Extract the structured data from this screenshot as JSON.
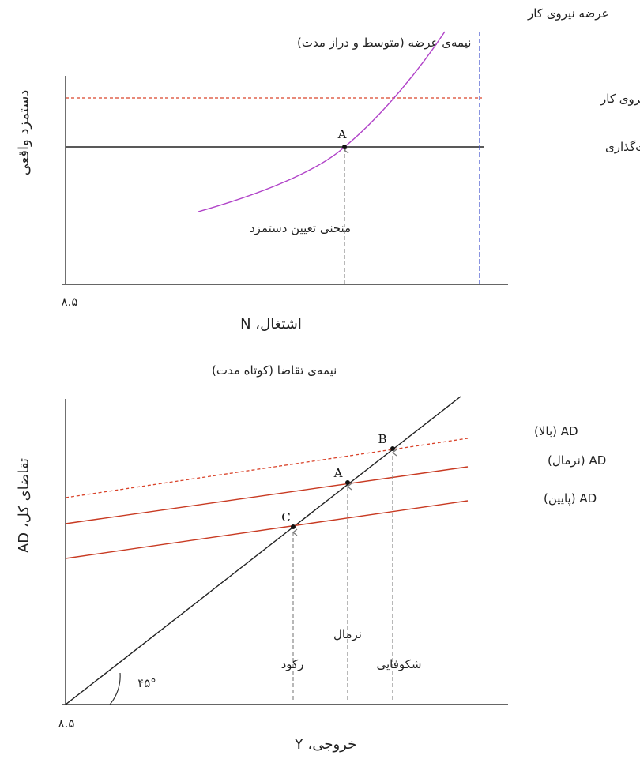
{
  "top": {
    "subtitle": "نیمه‌ی عرضه (متوسط و دراز مدت)",
    "y_axis_label": "دستمزد واقعی",
    "x_axis_label": "اشتغال، N",
    "origin_label": "۸.۵",
    "labor_supply_label": "عرضه نیروی کار",
    "labor_productivity_label": "بهره‌وری نیروی کار",
    "price_setting_label": "منحنی قیمت‌گذاری",
    "wage_setting_label": "منحنی تعیین دستمزد",
    "point_a": "A",
    "colors": {
      "supply": "#b042c8",
      "productivity": "#d9432a",
      "vertical": "#4a5bd0"
    }
  },
  "bottom": {
    "subtitle": "نیمه‌ی تقاضا (کوتاه مدت)",
    "y_axis_label": "تقاضای کل، AD",
    "x_axis_label": "خروجی، Y",
    "origin_label": "۸.۵",
    "ad_high_label": "AD (بالا)",
    "ad_normal_label": "AD (نرمال)",
    "ad_low_label": "AD (پایین)",
    "point_b": "B",
    "point_a": "A",
    "point_c": "C",
    "recession_label": "رکود",
    "normal_label": "نرمال",
    "boom_label": "شکوفایی",
    "angle_label": "۴۵°",
    "colors": {
      "ad": "#c83a22",
      "ad_high": "#d9432a"
    }
  }
}
